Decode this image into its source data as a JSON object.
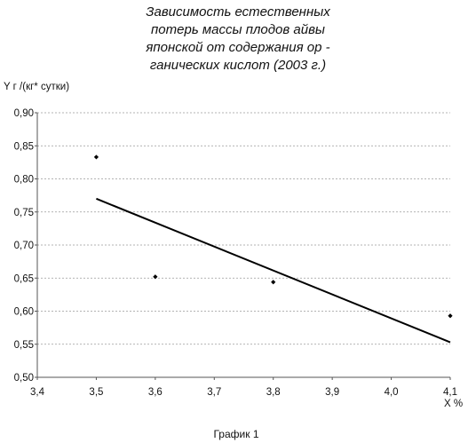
{
  "chart_data": {
    "type": "scatter",
    "title_lines": [
      "Зависимость естественных",
      "потерь массы плодов айвы",
      "японской от содержания ор -",
      "ганических кислот (2003 г.)"
    ],
    "ylabel": "Y   г /(кг* сутки)",
    "xlabel": "X  %",
    "caption": "График 1",
    "xlim": [
      3.4,
      4.1
    ],
    "ylim": [
      0.5,
      0.9
    ],
    "x_ticks": [
      3.4,
      3.5,
      3.6,
      3.7,
      3.8,
      3.9,
      4.0,
      4.1
    ],
    "x_tick_labels": [
      "3,4",
      "3,5",
      "3,6",
      "3,7",
      "3,8",
      "3,9",
      "4,0",
      "4,1"
    ],
    "y_ticks": [
      0.5,
      0.55,
      0.6,
      0.65,
      0.7,
      0.75,
      0.8,
      0.85,
      0.9
    ],
    "y_tick_labels": [
      "0,50",
      "0,55",
      "0,60",
      "0,65",
      "0,70",
      "0,75",
      "0,80",
      "0,85",
      "0,90"
    ],
    "grid": true,
    "series": [
      {
        "points": [
          {
            "x": 3.5,
            "y": 0.833
          },
          {
            "x": 3.6,
            "y": 0.652
          },
          {
            "x": 3.8,
            "y": 0.644
          },
          {
            "x": 4.1,
            "y": 0.593
          }
        ]
      }
    ],
    "trendline": {
      "x": [
        3.5,
        4.1
      ],
      "y": [
        0.77,
        0.553
      ]
    }
  }
}
